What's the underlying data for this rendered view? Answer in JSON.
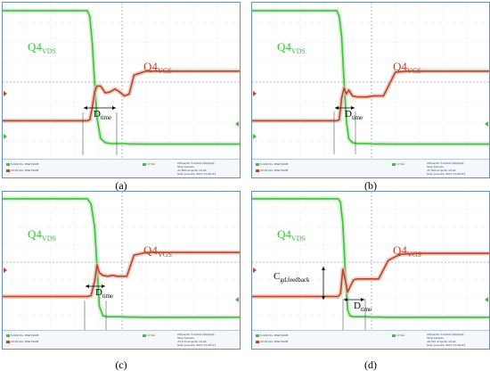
{
  "colors": {
    "vds": "#3fbf3a",
    "vds_glow": "#bfeabf",
    "vgs": "#b8442e",
    "vgs_glow": "#e7b9ad",
    "grid": "#cfd6df",
    "frame": "#6c8fb8"
  },
  "panels": [
    {
      "caption": "(a)",
      "label_vds": "Q4",
      "label_vds_sub": "VDS",
      "label_vgs": "Q4",
      "label_vgs_sub": "VGS",
      "dtime": "D",
      "dtime_sub": "time",
      "status": {
        "ch1": "5.00V/div",
        "ch1_imp": "1MΩ",
        "ch1_bw": "500M",
        "ch2": "20.0V/div",
        "ch2_imp": "1MΩ",
        "ch2_bw": "500M",
        "trig": "17.6V",
        "timebase": "200ns/div",
        "rate": "5.0GS/s",
        "mode_run": "Stop",
        "mode": "Sample",
        "acqs": "47,683 acqs",
        "rl": "RL:10.0k",
        "auto": "Auto",
        "date": "June 09, 2017",
        "points": "200ps/pt",
        "time": "10:20:21"
      }
    },
    {
      "caption": "(b)",
      "label_vds": "Q4",
      "label_vds_sub": "VDS",
      "label_vgs": "Q4",
      "label_vgs_sub": "VGS",
      "dtime": "D",
      "dtime_sub": "time",
      "status": {
        "ch1": "5.00V/div",
        "ch1_imp": "1MΩ",
        "ch1_bw": "500M",
        "ch2": "20.0V/div",
        "ch2_imp": "1MΩ",
        "ch2_bw": "500M",
        "trig": "17.6V",
        "timebase": "200ns/div",
        "rate": "5.0GS/s",
        "mode_run": "Stop",
        "mode": "Sample",
        "acqs": "37,460 acqs",
        "rl": "RL:10.0k",
        "auto": "Auto",
        "date": "June 09, 2017",
        "points": "200ps/pt",
        "time": "10:20:52"
      }
    },
    {
      "caption": "(c)",
      "label_vds": "Q4",
      "label_vds_sub": "VDS",
      "label_vgs": "Q4",
      "label_vgs_sub": "VGS",
      "dtime": "D",
      "dtime_sub": "time",
      "status": {
        "ch1": "5.00V/div",
        "ch1_imp": "1MΩ",
        "ch1_bw": "500M",
        "ch2": "20.0V/div",
        "ch2_imp": "1MΩ",
        "ch2_bw": "500M",
        "trig": "17.6V",
        "timebase": "200ns/div",
        "rate": "5.0GS/s",
        "mode_run": "Stop",
        "mode": "Sample",
        "acqs": "33,133 acqs",
        "rl": "RL:10.0k",
        "auto": "Auto",
        "date": "June 09, 2017",
        "points": "200ps/pt",
        "time": "10:25:17"
      }
    },
    {
      "caption": "(d)",
      "label_vds": "Q4",
      "label_vds_sub": "VDS",
      "label_vgs": "Q4",
      "label_vgs_sub": "VGS",
      "dtime": "D",
      "dtime_sub": "time",
      "cgd": "C",
      "cgd_sub": "gd,feedback",
      "status": {
        "ch1": "5.00V/div",
        "ch1_imp": "1MΩ",
        "ch1_bw": "500M",
        "ch2": "20.0V/div",
        "ch2_imp": "1MΩ",
        "ch2_bw": "500M",
        "trig": "17.6V",
        "timebase": "200ns/div",
        "rate": "5.0GS/s",
        "mode_run": "Stop",
        "mode": "Sample",
        "acqs": "39,397 acqs",
        "rl": "RL:10.0k",
        "auto": "Auto",
        "date": "June 09, 2017",
        "points": "200ps/pt",
        "time": "10:30:22"
      }
    }
  ],
  "chart_data": [
    {
      "type": "line",
      "panel": "(a)",
      "x": [
        0,
        3.55,
        3.65,
        3.75,
        3.85,
        3.95,
        4.1,
        4.3,
        4.5,
        4.7,
        4.9,
        5.1,
        5.3,
        5.5,
        6,
        7,
        8,
        10
      ],
      "series": [
        {
          "name": "Q4VDS",
          "values": [
            6.6,
            6.6,
            6.3,
            5.0,
            3.0,
            1.2,
            0.15,
            -0.05,
            -0.1,
            -0.1,
            -0.1,
            -0.1,
            -0.12,
            -0.12,
            -0.13,
            -0.13,
            -0.13,
            -0.13
          ]
        },
        {
          "name": "Q4VGS",
          "values": [
            1.05,
            1.05,
            1.1,
            1.7,
            2.5,
            2.8,
            2.8,
            2.45,
            2.5,
            2.65,
            2.5,
            2.3,
            2.4,
            3.35,
            3.55,
            3.55,
            3.55,
            3.55
          ]
        }
      ]
    },
    {
      "type": "line",
      "panel": "(b)",
      "x": [
        0,
        3.55,
        3.65,
        3.75,
        3.85,
        3.95,
        4.05,
        4.2,
        4.4,
        4.6,
        4.8,
        5.1,
        5.5,
        6,
        6.5,
        7,
        8,
        10
      ],
      "series": [
        {
          "name": "Q4VDS",
          "values": [
            6.6,
            6.6,
            6.3,
            5.3,
            3.0,
            1.0,
            0.15,
            -0.05,
            -0.1,
            -0.1,
            -0.1,
            -0.12,
            -0.12,
            -0.13,
            -0.13,
            -0.13,
            -0.13,
            -0.13
          ]
        },
        {
          "name": "Q4VGS",
          "values": [
            1.05,
            1.05,
            1.1,
            2.2,
            2.7,
            2.4,
            2.6,
            2.3,
            2.25,
            2.25,
            2.25,
            2.3,
            2.3,
            3.5,
            3.55,
            3.55,
            3.55,
            3.55
          ]
        }
      ]
    },
    {
      "type": "line",
      "panel": "(c)",
      "x": [
        0,
        3.55,
        3.7,
        3.85,
        3.95,
        4.05,
        4.2,
        4.4,
        4.6,
        4.8,
        5.0,
        5.2,
        5.5,
        6,
        6.5,
        7,
        8,
        10
      ],
      "series": [
        {
          "name": "Q4VDS",
          "values": [
            6.6,
            6.6,
            6.3,
            5.0,
            2.8,
            0.5,
            -0.05,
            -0.1,
            -0.1,
            -0.1,
            -0.1,
            -0.12,
            -0.12,
            -0.13,
            -0.13,
            -0.13,
            -0.13,
            -0.13
          ]
        },
        {
          "name": "Q4VGS",
          "values": [
            1.05,
            1.05,
            1.1,
            1.9,
            2.85,
            2.4,
            2.25,
            2.2,
            2.25,
            2.2,
            2.2,
            2.2,
            3.4,
            3.55,
            3.55,
            3.55,
            3.55,
            3.55
          ]
        }
      ]
    },
    {
      "type": "line",
      "panel": "(d)",
      "x": [
        0,
        3.6,
        3.7,
        3.8,
        3.9,
        4.0,
        4.1,
        4.25,
        4.4,
        4.6,
        4.8,
        5.0,
        5.3,
        5.7,
        6.2,
        7,
        8,
        10
      ],
      "series": [
        {
          "name": "Q4VDS",
          "values": [
            6.6,
            6.6,
            6.4,
            5.2,
            2.5,
            0.3,
            -0.05,
            -0.1,
            -0.1,
            -0.1,
            -0.1,
            -0.12,
            -0.12,
            -0.13,
            -0.13,
            -0.13,
            -0.13,
            -0.13
          ]
        },
        {
          "name": "Q4VGS",
          "values": [
            1.05,
            1.05,
            1.2,
            2.6,
            2.0,
            1.3,
            1.6,
            2.0,
            2.05,
            2.05,
            2.05,
            2.05,
            2.05,
            3.1,
            3.45,
            3.5,
            3.5,
            3.5
          ]
        }
      ]
    }
  ]
}
